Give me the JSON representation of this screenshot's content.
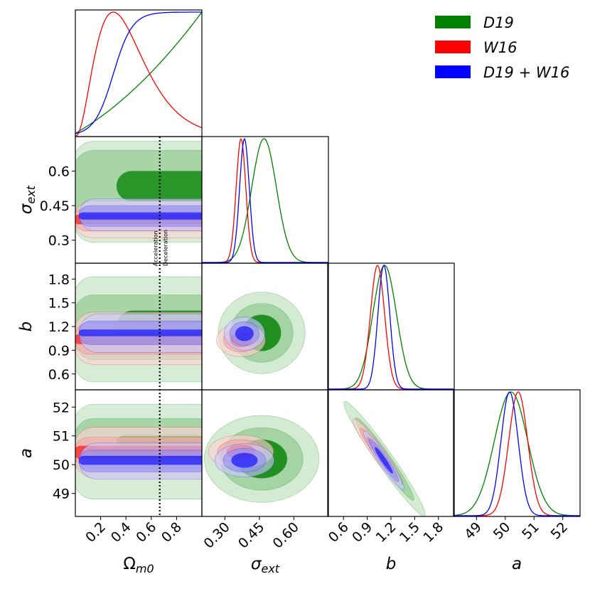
{
  "chart_data": {
    "type": "corner",
    "parameters": [
      {
        "key": "om",
        "label": "Ω_m0",
        "range": [
          0.0,
          1.0
        ],
        "ticks": [
          0.2,
          0.4,
          0.6,
          0.8
        ],
        "tick_labels": [
          "0.2",
          "0.4",
          "0.6",
          "0.8"
        ]
      },
      {
        "key": "sig",
        "label": "σ_ext",
        "range": [
          0.2,
          0.75
        ],
        "ticks": [
          0.3,
          0.45,
          0.6
        ],
        "tick_labels": [
          "0.30",
          "0.45",
          "0.60"
        ],
        "y_tick_labels": [
          "0.3",
          "0.45",
          "0.6"
        ]
      },
      {
        "key": "b",
        "label": "b",
        "range": [
          0.4,
          2.0
        ],
        "ticks": [
          0.6,
          0.9,
          1.2,
          1.5,
          1.8
        ],
        "tick_labels": [
          "0.6",
          "0.9",
          "1.2",
          "1.5",
          "1.8"
        ]
      },
      {
        "key": "a",
        "label": "a",
        "range": [
          48.2,
          52.6
        ],
        "ticks": [
          49,
          50,
          51,
          52
        ],
        "tick_labels": [
          "49",
          "50",
          "51",
          "52"
        ]
      }
    ],
    "series": [
      {
        "name": "D19",
        "color": "#008000",
        "marginals": {
          "om": {
            "kind": "increasing"
          },
          "sig": {
            "mean": 0.46,
            "sd": 0.055,
            "skew": 0.07
          },
          "b": {
            "mean": 1.12,
            "sd": 0.15
          },
          "a": {
            "mean": 50.2,
            "sd": 0.58
          }
        },
        "contours": {
          "om_sig": {
            "om_range": [
              0.0,
              1.0
            ],
            "sig_1": [
              0.47,
              0.6
            ],
            "sig_2": [
              0.38,
              0.69
            ],
            "sig_3": [
              0.29,
              0.73
            ]
          },
          "om_b": {
            "om_range": [
              0.0,
              1.0
            ],
            "b_1": [
              1.0,
              1.4
            ],
            "b_2": [
              0.78,
              1.6
            ],
            "b_3": [
              0.5,
              1.83
            ]
          },
          "om_a": {
            "om_range": [
              0.0,
              1.0
            ],
            "a_1": [
              50.55,
              51.0
            ],
            "a_2": [
              49.6,
              51.6
            ],
            "a_3": [
              48.8,
              52.1
            ]
          },
          "sig_b": {
            "center": [
              0.46,
              1.12
            ],
            "sd": [
              0.055,
              0.15
            ],
            "rho": 0.0
          },
          "sig_a": {
            "center": [
              0.46,
              50.2
            ],
            "sd": [
              0.055,
              0.58
            ],
            "rho": 0.0
          },
          "b_a": {
            "center": [
              1.12,
              50.2
            ],
            "sd": [
              0.15,
              0.58
            ],
            "rho": -0.97
          }
        }
      },
      {
        "name": "W16",
        "color": "#ff0000",
        "marginals": {
          "om": {
            "kind": "peaked"
          },
          "sig": {
            "mean": 0.37,
            "sd": 0.021
          },
          "b": {
            "mean": 1.03,
            "sd": 0.09
          },
          "a": {
            "mean": 50.45,
            "sd": 0.33
          }
        },
        "contours": {
          "om_sig": {
            "om_range": [
              0.0,
              1.0
            ],
            "sig_1": [
              0.37,
              0.41
            ],
            "sig_2": [
              0.34,
              0.44
            ],
            "sig_3": [
              0.31,
              0.47
            ]
          },
          "om_b": {
            "om_range": [
              0.0,
              1.0
            ],
            "b_1": [
              0.98,
              1.1
            ],
            "b_2": [
              0.85,
              1.25
            ],
            "b_3": [
              0.72,
              1.38
            ]
          },
          "om_a": {
            "om_range": [
              0.0,
              1.0
            ],
            "a_1": [
              50.2,
              50.65
            ],
            "a_2": [
              49.9,
              50.95
            ],
            "a_3": [
              49.55,
              51.3
            ]
          },
          "sig_b": {
            "center": [
              0.37,
              1.03
            ],
            "sd": [
              0.021,
              0.09
            ],
            "rho": 0.0
          },
          "sig_a": {
            "center": [
              0.37,
              50.45
            ],
            "sd": [
              0.021,
              0.33
            ],
            "rho": 0.0
          },
          "b_a": {
            "center": [
              1.03,
              50.45
            ],
            "sd": [
              0.09,
              0.33
            ],
            "rho": -0.95
          }
        }
      },
      {
        "name": "D19 + W16",
        "color": "#0000ff",
        "marginals": {
          "om": {
            "kind": "plateau"
          },
          "sig": {
            "mean": 0.385,
            "sd": 0.021
          },
          "b": {
            "mean": 1.11,
            "sd": 0.075
          },
          "a": {
            "mean": 50.15,
            "sd": 0.3
          }
        },
        "contours": {
          "om_sig": {
            "om_range": [
              0.04,
              1.0
            ],
            "sig_1": [
              0.39,
              0.42
            ],
            "sig_2": [
              0.36,
              0.45
            ],
            "sig_3": [
              0.34,
              0.48
            ]
          },
          "om_b": {
            "om_range": [
              0.04,
              1.0
            ],
            "b_1": [
              1.08,
              1.16
            ],
            "b_2": [
              0.97,
              1.27
            ],
            "b_3": [
              0.87,
              1.36
            ]
          },
          "om_a": {
            "om_range": [
              0.04,
              1.0
            ],
            "a_1": [
              50.0,
              50.3
            ],
            "a_2": [
              49.75,
              50.5
            ],
            "a_3": [
              49.5,
              50.75
            ]
          },
          "sig_b": {
            "center": [
              0.385,
              1.11
            ],
            "sd": [
              0.021,
              0.075
            ],
            "rho": 0.0
          },
          "sig_a": {
            "center": [
              0.385,
              50.15
            ],
            "sd": [
              0.021,
              0.3
            ],
            "rho": 0.0
          },
          "b_a": {
            "center": [
              1.11,
              50.15
            ],
            "sd": [
              0.075,
              0.3
            ],
            "rho": -0.95
          }
        }
      }
    ],
    "vline": {
      "parameter": "om",
      "value": 0.667,
      "style": "dotted"
    },
    "annotations": [
      {
        "text": "Acceleration",
        "side": "left"
      },
      {
        "text": "Deceleration",
        "side": "right"
      }
    ],
    "legend": {
      "placement": "top-right",
      "entries": [
        "D19",
        "W16",
        "D19 + W16"
      ]
    }
  }
}
